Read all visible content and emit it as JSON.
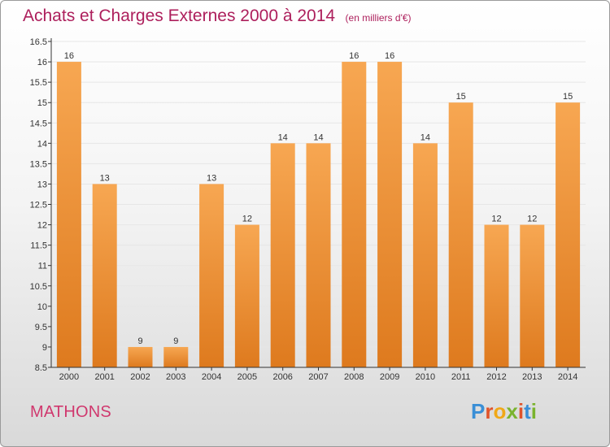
{
  "title": "Achats et Charges Externes 2000 à 2014",
  "unit_note": "(en milliers d'€)",
  "commune": "MATHONS",
  "logo": {
    "text": "Proxiti",
    "letters": [
      {
        "char": "P",
        "color": "#3a8fd6"
      },
      {
        "char": "r",
        "color": "#e0542a"
      },
      {
        "char": "o",
        "color": "#f0a818"
      },
      {
        "char": "x",
        "color": "#7ab32e"
      },
      {
        "char": "i",
        "color": "#e0542a"
      },
      {
        "char": "t",
        "color": "#3a8fd6"
      },
      {
        "char": "i",
        "color": "#7ab32e"
      }
    ]
  },
  "colors": {
    "title": "#ad1f5c",
    "bar_top": "#f7a752",
    "bar_bottom": "#de7a1e",
    "axis": "#333333",
    "grid": "#e6e6e6"
  },
  "chart_data": {
    "type": "bar",
    "categories": [
      "2000",
      "2001",
      "2002",
      "2003",
      "2004",
      "2005",
      "2006",
      "2007",
      "2008",
      "2009",
      "2010",
      "2011",
      "2012",
      "2013",
      "2014"
    ],
    "values": [
      16,
      13,
      9,
      9,
      13,
      12,
      14,
      14,
      16,
      16,
      14,
      15,
      12,
      12,
      15
    ],
    "value_labels": [
      "16",
      "13",
      "9",
      "9",
      "13",
      "12",
      "14",
      "14",
      "16",
      "16",
      "14",
      "15",
      "12",
      "12",
      "15"
    ],
    "ylim": [
      8.5,
      16.5
    ],
    "yticks": [
      "8.5",
      "9",
      "9.5",
      "10",
      "10.5",
      "11",
      "11.5",
      "12",
      "12.5",
      "13",
      "13.5",
      "14",
      "14.5",
      "15",
      "15.5",
      "16",
      "16.5"
    ],
    "grid": true,
    "legend": "none"
  }
}
